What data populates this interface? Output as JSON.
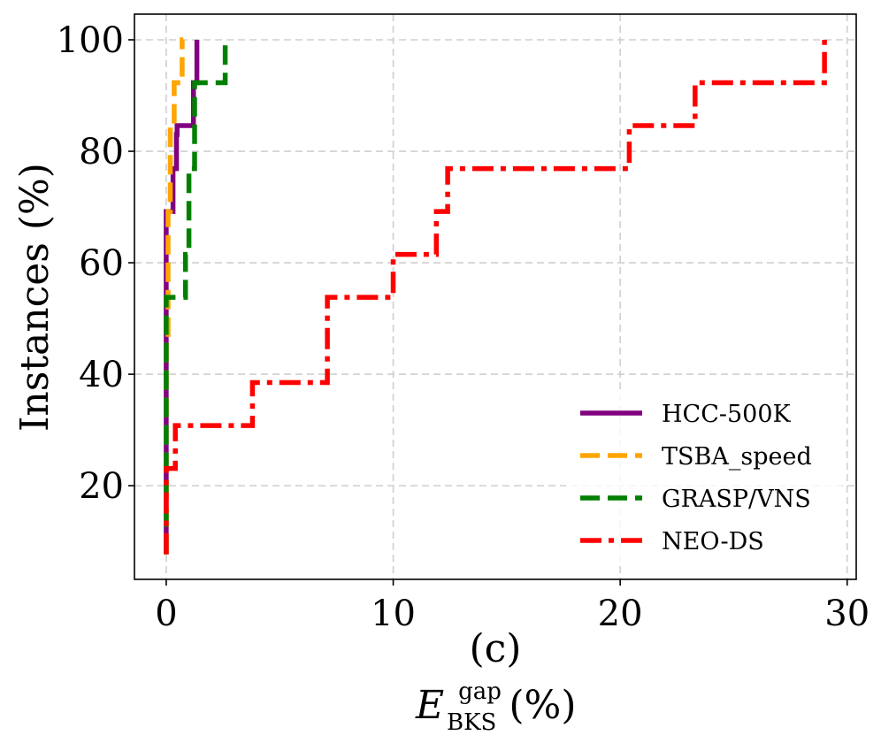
{
  "chart_data": {
    "type": "line",
    "subtitle": "(c)",
    "xlabel": "E",
    "xlabel_superscript": "gap",
    "xlabel_subscript": "BKS",
    "xlabel_suffix": " (%)",
    "ylabel": "Instances (%)",
    "xlim": [
      -1.4,
      30.4
    ],
    "ylim": [
      3.2,
      104.6
    ],
    "xticks": [
      0,
      10,
      20,
      30
    ],
    "yticks": [
      20,
      40,
      60,
      80,
      100
    ],
    "xtick_labels": [
      "0",
      "10",
      "20",
      "30"
    ],
    "ytick_labels": [
      "20",
      "40",
      "60",
      "80",
      "100"
    ],
    "grid": true,
    "legend_position": "bottom-right",
    "series": [
      {
        "name": "HCC-500K",
        "color": "#800080",
        "style": "solid",
        "x": [
          0,
          0,
          0,
          0,
          0,
          0,
          0.3,
          0.3,
          0.45,
          0.45,
          0.48,
          0.48,
          1.2,
          1.2,
          1.35,
          1.35
        ],
        "y": [
          7.7,
          15.4,
          15.4,
          38.5,
          38.5,
          69.2,
          69.2,
          76.9,
          76.9,
          83,
          83,
          84.6,
          84.6,
          92.3,
          92.3,
          100
        ]
      },
      {
        "name": "TSBA_speed",
        "color": "#FFA500",
        "style": "dashed",
        "x": [
          0,
          0,
          0.08,
          0.08,
          0.18,
          0.18,
          0.35,
          0.35,
          0.7,
          0.7,
          0.75
        ],
        "y": [
          7.7,
          46.2,
          46.2,
          69.2,
          69.2,
          84.6,
          84.6,
          92.3,
          92.3,
          100,
          100
        ]
      },
      {
        "name": "GRASP/VNS",
        "color": "#008000",
        "style": "dashed",
        "x": [
          0,
          0,
          0.05,
          0.05,
          0.85,
          0.85,
          1.0,
          1.0,
          1.25,
          1.25,
          2.6,
          2.6
        ],
        "y": [
          7.7,
          53.8,
          53.8,
          53.8,
          53.8,
          61.5,
          61.5,
          76.9,
          76.9,
          92.3,
          92.3,
          100
        ]
      },
      {
        "name": "NEO-DS",
        "color": "#FF0000",
        "style": "dashdot",
        "x": [
          0,
          0,
          0.4,
          0.4,
          3.8,
          3.8,
          7.1,
          7.1,
          10,
          10,
          11.9,
          11.9,
          12.4,
          12.4,
          20.4,
          20.4,
          23.3,
          23.3,
          29,
          29
        ],
        "y": [
          7.7,
          23.1,
          23.1,
          30.8,
          30.8,
          38.5,
          38.5,
          53.8,
          53.8,
          61.5,
          61.5,
          69.2,
          69.2,
          76.9,
          76.9,
          84.6,
          84.6,
          92.3,
          92.3,
          100
        ]
      }
    ]
  }
}
